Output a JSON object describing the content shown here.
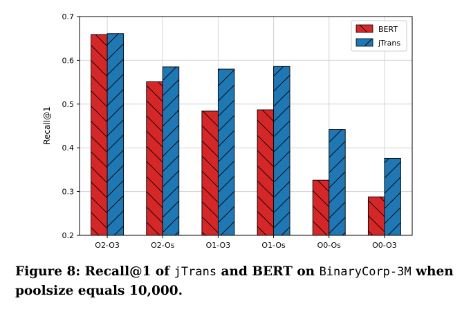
{
  "chart_data": {
    "type": "bar",
    "categories": [
      "O2-O3",
      "O2-Os",
      "O1-O3",
      "O1-Os",
      "O0-Os",
      "O0-O3"
    ],
    "series": [
      {
        "name": "BERT",
        "values": [
          0.659,
          0.551,
          0.484,
          0.487,
          0.326,
          0.288
        ],
        "color": "#d62728",
        "hatch": "backslash"
      },
      {
        "name": "jTrans",
        "values": [
          0.661,
          0.585,
          0.58,
          0.586,
          0.442,
          0.376
        ],
        "color": "#1f77b4",
        "hatch": "slash"
      }
    ],
    "xlabel": "",
    "ylabel": "Recall@1",
    "ylim": [
      0.2,
      0.7
    ],
    "yticks": [
      "0.2",
      "0.3",
      "0.4",
      "0.5",
      "0.6",
      "0.7"
    ],
    "grid": true,
    "legend_position": "top-right"
  },
  "caption": {
    "part1": "Figure 8: Recall@1 of ",
    "code1": "jTrans",
    "part2": " and BERT on ",
    "code2": "BinaryCorp-3M",
    "part3": " when poolsize equals 10,000."
  }
}
